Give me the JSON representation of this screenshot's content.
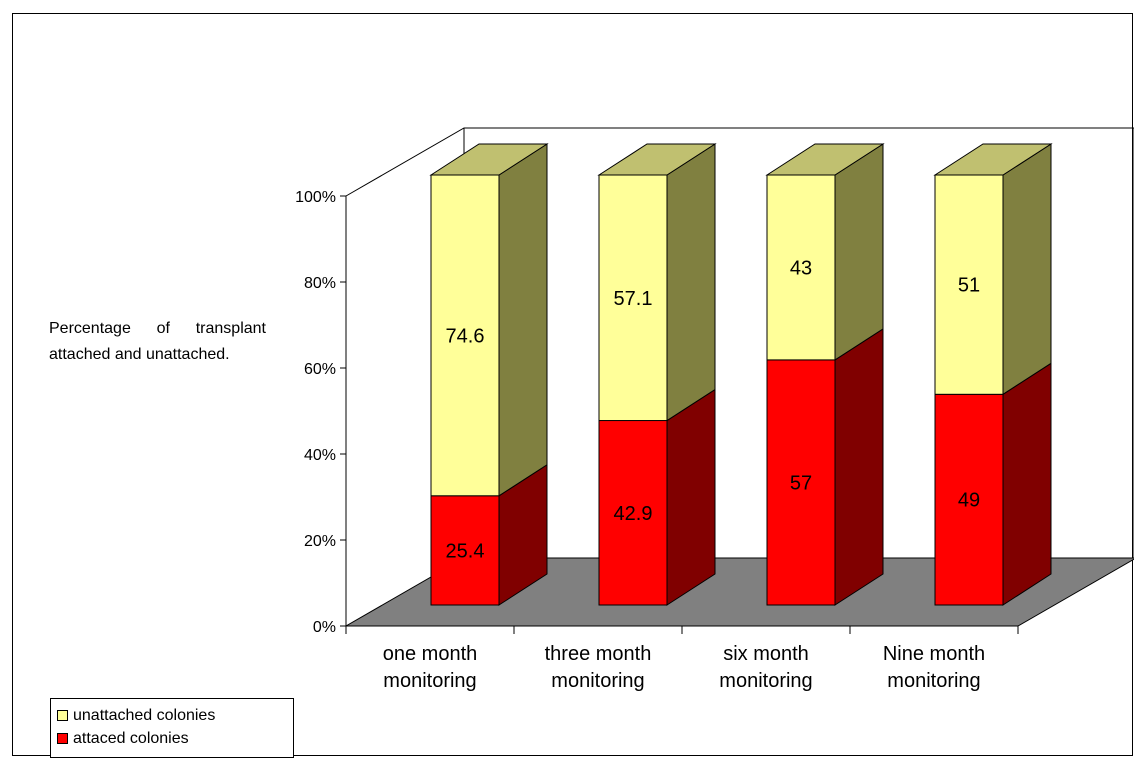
{
  "chart_data": {
    "type": "bar",
    "stacked": true,
    "three_d": true,
    "ylabel": "Percentage of transplant attached and unattached.",
    "ylim": [
      0,
      100
    ],
    "yticks": [
      "0%",
      "20%",
      "40%",
      "60%",
      "80%",
      "100%"
    ],
    "categories": [
      "one month monitoring",
      "three month monitoring",
      "six month monitoring",
      "Nine month monitoring"
    ],
    "category_lines": [
      [
        "one month",
        "monitoring"
      ],
      [
        "three month",
        "monitoring"
      ],
      [
        "six month",
        "monitoring"
      ],
      [
        "Nine month",
        "monitoring"
      ]
    ],
    "series": [
      {
        "name": "attaced colonies",
        "values": [
          25.4,
          42.9,
          57,
          49
        ],
        "labels": [
          "25.4",
          "42.9",
          "57",
          "49"
        ],
        "color": "#ff0000",
        "side_color": "#800000",
        "top_color": "#800000"
      },
      {
        "name": "unattached colonies",
        "values": [
          74.6,
          57.1,
          43,
          51
        ],
        "labels": [
          "74.6",
          "57.1",
          "43",
          "51"
        ],
        "color": "#ffff99",
        "side_color": "#808040",
        "top_color": "#c0c070"
      }
    ],
    "legend": {
      "position": "bottom-left",
      "entries": [
        {
          "name": "unattached colonies",
          "color": "#ffff99"
        },
        {
          "name": "attaced colonies",
          "color": "#ff0000"
        }
      ]
    },
    "floor_color": "#808080",
    "grid": false
  }
}
